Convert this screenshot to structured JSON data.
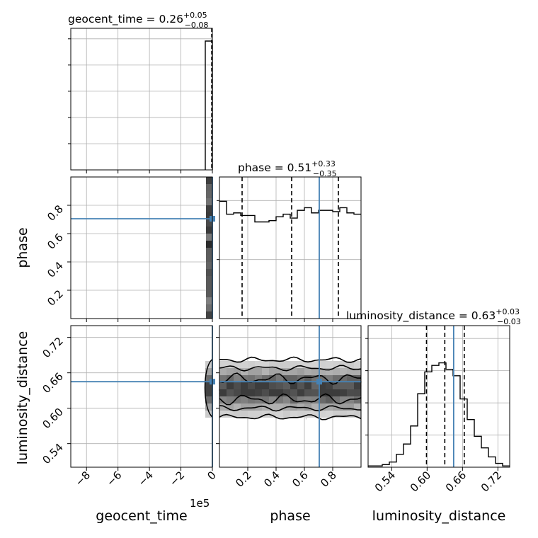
{
  "chart_data": {
    "type": "corner",
    "parameters": [
      "geocent_time",
      "phase",
      "luminosity_distance"
    ],
    "x_offset_label": "1e5",
    "truths": {
      "geocent_time": 0.0,
      "phase": 0.705,
      "luminosity_distance": 0.645
    },
    "titles": [
      {
        "name": "geocent_time",
        "value": "0.26",
        "plus": "+0.05",
        "minus": "−0.08"
      },
      {
        "name": "phase",
        "value": "0.51",
        "plus": "+0.33",
        "minus": "−0.35"
      },
      {
        "name": "luminosity_distance",
        "value": "0.63",
        "plus": "+0.03",
        "minus": "−0.03"
      }
    ],
    "axes": {
      "geocent_time": {
        "range": [
          -9.0,
          0.0
        ],
        "ticks": [
          -8,
          -6,
          -4,
          -2,
          0
        ],
        "tick_labels": [
          "−8",
          "−6",
          "−4",
          "−2",
          "0"
        ],
        "label": "geocent_time"
      },
      "phase": {
        "range": [
          0.0,
          1.0
        ],
        "ticks": [
          0.2,
          0.4,
          0.6,
          0.8
        ],
        "tick_labels": [
          "0.2",
          "0.4",
          "0.6",
          "0.8"
        ],
        "label": "phase"
      },
      "luminosity_distance": {
        "range": [
          0.5,
          0.74
        ],
        "ticks": [
          0.54,
          0.6,
          0.66,
          0.72
        ],
        "tick_labels": [
          "0.54",
          "0.60",
          "0.66",
          "0.72"
        ],
        "label": "luminosity_distance"
      }
    },
    "histograms": {
      "geocent_time": {
        "bin_edges_approx": [
          -0.004,
          0.0
        ],
        "values": [
          1.0
        ],
        "quantiles": [
          0.0
        ]
      },
      "phase": {
        "range": [
          0.0,
          1.0
        ],
        "values": [
          0.91,
          0.81,
          0.82,
          0.8,
          0.8,
          0.75,
          0.75,
          0.76,
          0.79,
          0.81,
          0.78,
          0.84,
          0.86,
          0.82,
          0.84,
          0.84,
          0.83,
          0.86,
          0.82,
          0.81
        ],
        "quantiles": [
          0.16,
          0.51,
          0.84
        ]
      },
      "luminosity_distance": {
        "range": [
          0.5,
          0.74
        ],
        "values": [
          0.01,
          0.01,
          0.02,
          0.04,
          0.1,
          0.18,
          0.32,
          0.57,
          0.74,
          0.79,
          0.81,
          0.76,
          0.71,
          0.53,
          0.37,
          0.24,
          0.15,
          0.08,
          0.03,
          0.01
        ],
        "quantiles": [
          0.599,
          0.63,
          0.663
        ]
      }
    },
    "legend": "none",
    "grid": true
  }
}
